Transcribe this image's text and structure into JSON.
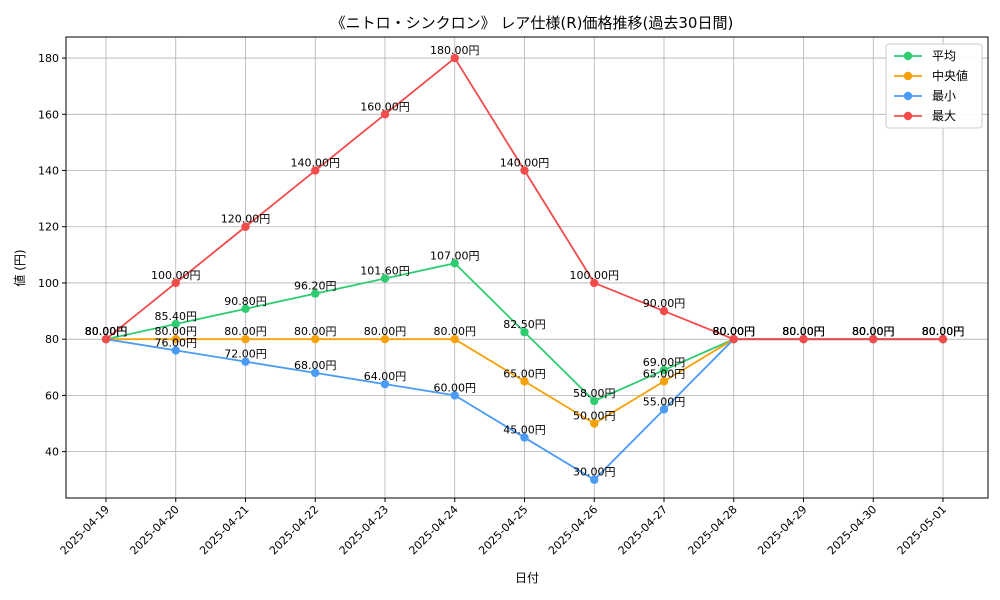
{
  "chart_data": {
    "type": "line",
    "title": "《ニトロ・シンクロン》 レア仕様(R)価格推移(過去30日間)",
    "xlabel": "日付",
    "ylabel": "値 (円)",
    "categories": [
      "2025-04-19",
      "2025-04-20",
      "2025-04-21",
      "2025-04-22",
      "2025-04-23",
      "2025-04-24",
      "2025-04-25",
      "2025-04-26",
      "2025-04-27",
      "2025-04-28",
      "2025-04-29",
      "2025-04-30",
      "2025-05-01"
    ],
    "yticks": [
      40,
      60,
      80,
      100,
      120,
      140,
      160,
      180
    ],
    "ylim": [
      23.5,
      187.5
    ],
    "grid": true,
    "legend_position": "top-right",
    "label_suffix": "円",
    "series": [
      {
        "name": "平均",
        "color": "#2ecc71",
        "values": [
          80,
          85.4,
          90.8,
          96.2,
          101.6,
          107,
          82.5,
          58,
          69,
          80,
          80,
          80,
          80
        ]
      },
      {
        "name": "中央値",
        "color": "#f5a20a",
        "values": [
          80,
          80,
          80,
          80,
          80,
          80,
          65,
          50,
          65,
          80,
          80,
          80,
          80
        ]
      },
      {
        "name": "最小",
        "color": "#4b9bf5",
        "values": [
          80,
          76,
          72,
          68,
          64,
          60,
          45,
          30,
          55,
          80,
          80,
          80,
          80
        ]
      },
      {
        "name": "最大",
        "color": "#f24b4b",
        "values": [
          80,
          100,
          120,
          140,
          160,
          180,
          140,
          100,
          90,
          80,
          80,
          80,
          80
        ]
      }
    ]
  }
}
